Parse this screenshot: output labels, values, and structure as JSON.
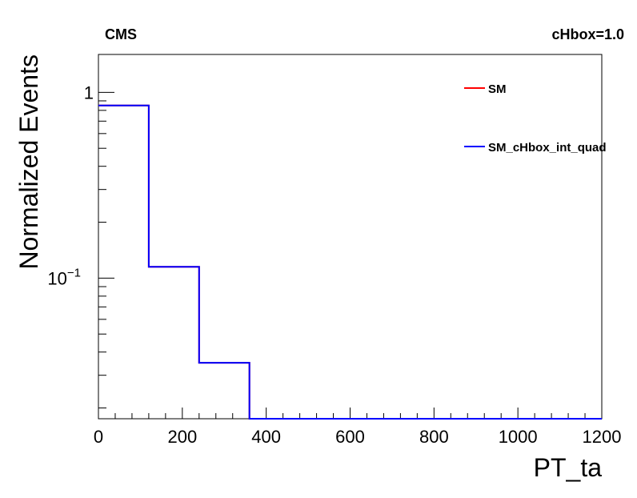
{
  "chart_data": {
    "type": "line",
    "title_left": "CMS",
    "title_right": "cHbox=1.0",
    "xlabel": "PT_ta",
    "ylabel": "Normalized Events",
    "xlim": [
      0,
      1200
    ],
    "ylim": [
      0.0175,
      1.6
    ],
    "yscale": "log",
    "x_ticks": [
      {
        "value": 0,
        "label": "0"
      },
      {
        "value": 200,
        "label": "200"
      },
      {
        "value": 400,
        "label": "400"
      },
      {
        "value": 600,
        "label": "600"
      },
      {
        "value": 800,
        "label": "800"
      },
      {
        "value": 1000,
        "label": "1000"
      },
      {
        "value": 1200,
        "label": "1200"
      }
    ],
    "y_ticks": [
      {
        "value": 1,
        "base": "1",
        "exp": ""
      },
      {
        "value": 0.1,
        "base": "10",
        "exp": "−1"
      }
    ],
    "bin_edges": [
      0,
      120,
      240,
      360,
      480,
      600,
      720,
      840,
      960,
      1080,
      1200
    ],
    "series": [
      {
        "name": "SM",
        "color": "#ff0000",
        "values": [
          0.85,
          0.115,
          0.035,
          0,
          0,
          0,
          0,
          0,
          0,
          0
        ]
      },
      {
        "name": "SM_cHbox_int_quad",
        "color": "#0000ff",
        "values": [
          0.85,
          0.115,
          0.035,
          0,
          0,
          0,
          0,
          0,
          0,
          0
        ]
      }
    ],
    "legend_position": "top-right"
  }
}
